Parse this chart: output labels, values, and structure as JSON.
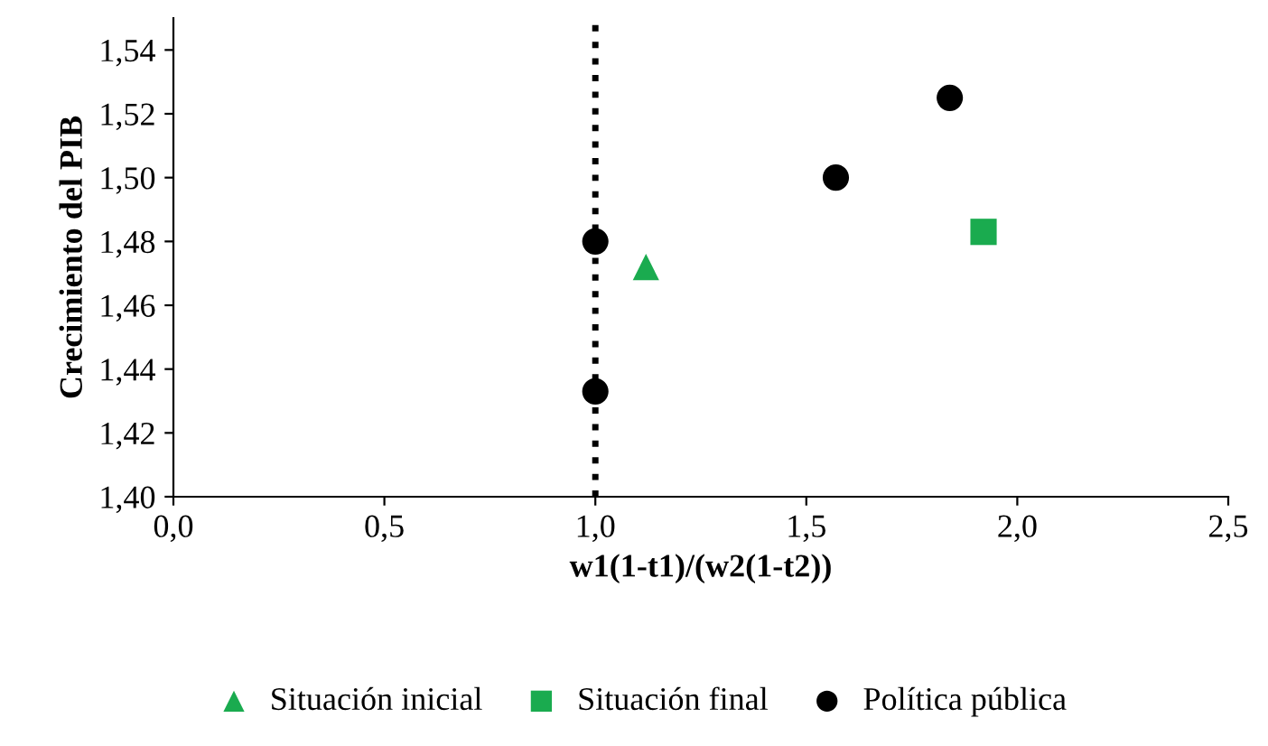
{
  "chart_data": {
    "type": "scatter",
    "xlabel": "w1(1-t1)/(w2(1-t2))",
    "ylabel": "Crecimiento del PIB",
    "xlim": [
      0,
      2.5
    ],
    "xticks": [
      {
        "value": 0,
        "label": "0,0"
      },
      {
        "value": 0.5,
        "label": "0,5"
      },
      {
        "value": 1,
        "label": "1,0"
      },
      {
        "value": 1.5,
        "label": "1,5"
      },
      {
        "value": 2,
        "label": "2,0"
      },
      {
        "value": 2.5,
        "label": "2,5"
      }
    ],
    "ylim": [
      1.4,
      1.55
    ],
    "yticks": [
      {
        "value": 1.4,
        "label": "1,40"
      },
      {
        "value": 1.42,
        "label": "1,42"
      },
      {
        "value": 1.44,
        "label": "1,44"
      },
      {
        "value": 1.46,
        "label": "1,46"
      },
      {
        "value": 1.48,
        "label": "1,48"
      },
      {
        "value": 1.5,
        "label": "1,50"
      },
      {
        "value": 1.52,
        "label": "1,52"
      },
      {
        "value": 1.54,
        "label": "1,54"
      }
    ],
    "grid": false,
    "legend": "bottom",
    "ref_lines": [
      {
        "axis": "x",
        "value": 1,
        "color": "#000000",
        "line_style": "dotted"
      }
    ],
    "series": [
      {
        "name": "Situación inicial",
        "color": "#1aab4f",
        "marker": "triangle",
        "x": [
          1.12
        ],
        "values": [
          1.472
        ]
      },
      {
        "name": "Situación final",
        "color": "#1aab4f",
        "marker": "square",
        "x": [
          1.92
        ],
        "values": [
          1.483
        ]
      },
      {
        "name": "Política pública",
        "color": "#000000",
        "marker": "circle",
        "x": [
          1.0,
          1.0,
          1.57,
          1.84
        ],
        "values": [
          1.48,
          1.433,
          1.5,
          1.525
        ]
      }
    ]
  }
}
